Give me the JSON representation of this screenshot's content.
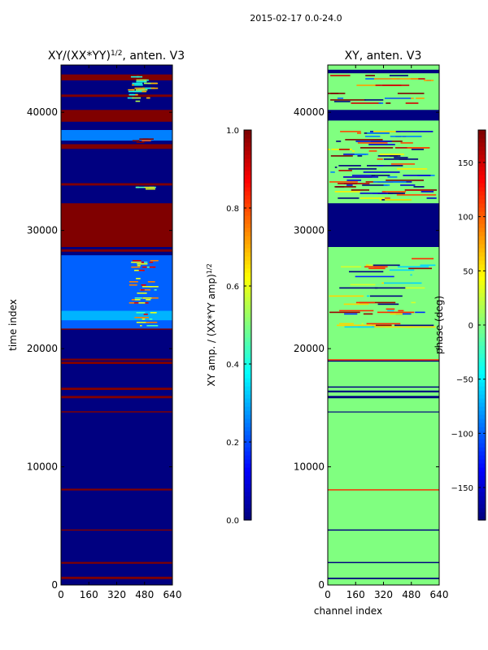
{
  "figure": {
    "suptitle": "2015-02-17 0.0-24.0"
  },
  "colors": {
    "jet_dark_blue": "#00007f",
    "jet_blue": "#0000ff",
    "jet_cyan": "#00ffff",
    "jet_green": "#7fff7f",
    "jet_yellow": "#ffff00",
    "jet_red": "#ff0000",
    "jet_dark_red": "#7f0000"
  },
  "chart_data": [
    {
      "type": "heatmap",
      "title": "XY/(XX*YY)",
      "title_exponent": "1/2",
      "title_suffix": ", anten. V3",
      "xlabel": "",
      "ylabel": "time index",
      "xlim": [
        0,
        640
      ],
      "ylim": [
        0,
        44000
      ],
      "xticks": [
        0,
        160,
        320,
        480,
        640
      ],
      "yticks": [
        0,
        10000,
        20000,
        30000,
        40000
      ],
      "background_value": 0.0,
      "bands": [
        {
          "y0": 500,
          "y1": 700,
          "value": 1.0
        },
        {
          "y0": 1800,
          "y1": 1950,
          "value": 1.0
        },
        {
          "y0": 4600,
          "y1": 4700,
          "value": 1.0
        },
        {
          "y0": 8000,
          "y1": 8150,
          "value": 1.0
        },
        {
          "y0": 14600,
          "y1": 14700,
          "value": 1.0
        },
        {
          "y0": 15800,
          "y1": 16000,
          "value": 1.0
        },
        {
          "y0": 16500,
          "y1": 16700,
          "value": 1.0
        },
        {
          "y0": 18700,
          "y1": 18900,
          "value": 1.0
        },
        {
          "y0": 19000,
          "y1": 19150,
          "value": 1.0
        },
        {
          "y0": 21600,
          "y1": 21800,
          "value": 1.0
        },
        {
          "y0": 26800,
          "y1": 27000,
          "value": 1.0
        },
        {
          "y0": 28200,
          "y1": 28400,
          "value": 1.0
        },
        {
          "y0": 28600,
          "y1": 32300,
          "value": 1.0
        },
        {
          "y0": 33800,
          "y1": 34000,
          "value": 1.0
        },
        {
          "y0": 36900,
          "y1": 37300,
          "value": 1.0
        },
        {
          "y0": 39200,
          "y1": 40200,
          "value": 1.0
        },
        {
          "y0": 41300,
          "y1": 41500,
          "value": 1.0
        },
        {
          "y0": 42700,
          "y1": 43200,
          "value": 1.0
        },
        {
          "y0": 21700,
          "y1": 27900,
          "value": 0.22,
          "x0": 0,
          "x1": 640
        },
        {
          "y0": 22400,
          "y1": 23200,
          "value": 0.3,
          "x0": 0,
          "x1": 640
        },
        {
          "y0": 37600,
          "y1": 38500,
          "value": 0.25,
          "x0": 0,
          "x1": 640
        }
      ],
      "speckles": [
        {
          "y0": 21800,
          "y1": 27500,
          "x0": 390,
          "x1": 560,
          "values": [
            0.45,
            0.6,
            0.75,
            0.9
          ]
        },
        {
          "y0": 37400,
          "y1": 38200,
          "x0": 400,
          "x1": 560,
          "values": [
            0.5,
            0.8,
            1.0
          ]
        },
        {
          "y0": 33300,
          "y1": 33700,
          "x0": 400,
          "x1": 560,
          "values": [
            0.45,
            0.6
          ]
        },
        {
          "y0": 40500,
          "y1": 43600,
          "x0": 380,
          "x1": 560,
          "values": [
            0.4,
            0.55,
            0.7
          ]
        }
      ],
      "colorbar": {
        "label": "XY amp. / (XX*YY amp)",
        "label_exponent": "1/2",
        "range": [
          0.0,
          1.0
        ],
        "ticks": [
          0.0,
          0.2,
          0.4,
          0.6,
          0.8,
          1.0
        ],
        "tick_labels": [
          "0.0",
          "0.2",
          "0.4",
          "0.6",
          "0.8",
          "1.0"
        ]
      }
    },
    {
      "type": "heatmap",
      "title": "XY, anten. V3",
      "xlabel": "channel index",
      "ylabel": "",
      "xlim": [
        0,
        640
      ],
      "ylim": [
        0,
        44000
      ],
      "xticks": [
        0,
        160,
        320,
        480,
        640
      ],
      "yticks": [
        0,
        10000,
        20000,
        30000,
        40000
      ],
      "background_value": 0,
      "bands": [
        {
          "y0": 500,
          "y1": 620,
          "value": -180
        },
        {
          "y0": 1850,
          "y1": 1950,
          "value": -180
        },
        {
          "y0": 4600,
          "y1": 4700,
          "value": -180
        },
        {
          "y0": 14600,
          "y1": 14680,
          "value": -180
        },
        {
          "y0": 15800,
          "y1": 16000,
          "value": -180
        },
        {
          "y0": 16300,
          "y1": 16450,
          "value": -180
        },
        {
          "y0": 16700,
          "y1": 16800,
          "value": -180
        },
        {
          "y0": 18900,
          "y1": 19000,
          "value": -180
        },
        {
          "y0": 28600,
          "y1": 32300,
          "value": -180
        },
        {
          "y0": 39300,
          "y1": 40200,
          "value": -180
        },
        {
          "y0": 43300,
          "y1": 43600,
          "value": -180
        },
        {
          "y0": 8000,
          "y1": 8100,
          "value": 120
        },
        {
          "y0": 19000,
          "y1": 19100,
          "value": 120
        }
      ],
      "speckles": [
        {
          "y0": 21700,
          "y1": 27800,
          "x0": 0,
          "x1": 640,
          "values": [
            -180,
            -120,
            -60,
            30,
            60,
            120,
            170
          ]
        },
        {
          "y0": 32500,
          "y1": 38700,
          "x0": 0,
          "x1": 640,
          "values": [
            -180,
            -150,
            -90,
            50,
            110,
            160,
            180
          ]
        },
        {
          "y0": 40300,
          "y1": 43300,
          "x0": 0,
          "x1": 640,
          "values": [
            -180,
            -100,
            80,
            150,
            180
          ]
        }
      ],
      "colorbar": {
        "label": "phase (deg)",
        "range": [
          -180,
          180
        ],
        "ticks": [
          -150,
          -100,
          -50,
          0,
          50,
          100,
          150
        ],
        "tick_labels": [
          "−150",
          "−100",
          "−50",
          "0",
          "50",
          "100",
          "150"
        ]
      }
    }
  ]
}
